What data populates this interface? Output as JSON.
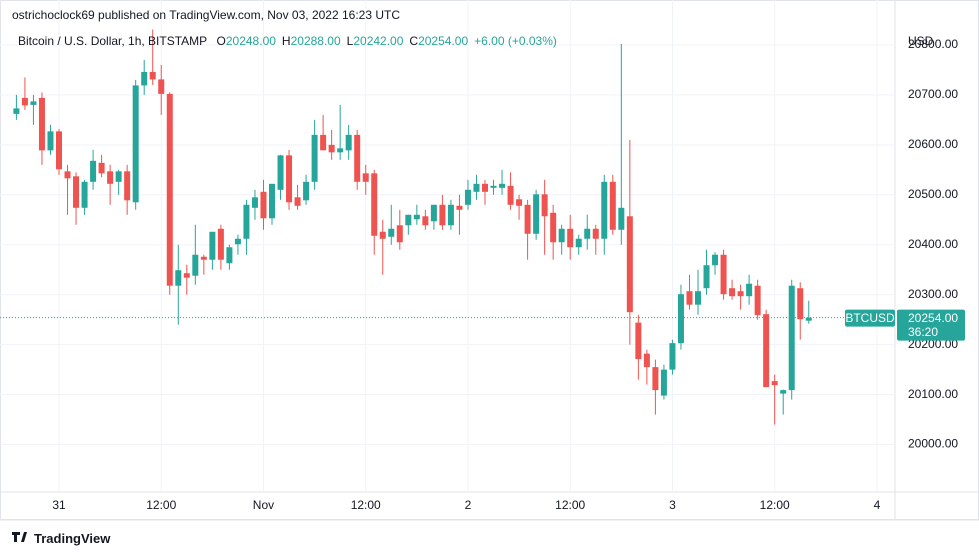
{
  "header": {
    "published": "ostrichoclock69 published on TradingView.com, Nov 03, 2022 16:23 UTC"
  },
  "footer": {
    "brand": "TradingView"
  },
  "chart_data": {
    "type": "candlestick",
    "symbol_line": "Bitcoin / U.S. Dollar, 1h, BITSTAMP",
    "legend": [
      {
        "key": "O",
        "text": "20248.00"
      },
      {
        "key": "H",
        "text": "20288.00"
      },
      {
        "key": "L",
        "text": "20242.00"
      },
      {
        "key": "C",
        "text": "20254.00"
      }
    ],
    "change": "+6.00 (+0.03%)",
    "currency": "USD",
    "price_tag": {
      "symbol": "BTCUSD",
      "price": "20254.00",
      "countdown": "36:20"
    },
    "up_color": "#26a69a",
    "down_color": "#ef5350",
    "grid": true,
    "categories": [
      null,
      null,
      null,
      null,
      null,
      "31",
      null,
      null,
      null,
      null,
      null,
      null,
      null,
      null,
      null,
      null,
      null,
      "12:00",
      null,
      null,
      null,
      null,
      null,
      null,
      null,
      null,
      null,
      null,
      null,
      "Nov",
      null,
      null,
      null,
      null,
      null,
      null,
      null,
      null,
      null,
      null,
      null,
      "12:00",
      null,
      null,
      null,
      null,
      null,
      null,
      null,
      null,
      null,
      null,
      null,
      "2",
      null,
      null,
      null,
      null,
      null,
      null,
      null,
      null,
      null,
      null,
      null,
      "12:00",
      null,
      null,
      null,
      null,
      null,
      null,
      null,
      null,
      null,
      null,
      null,
      "3",
      null,
      null,
      null,
      null,
      null,
      null,
      null,
      null,
      null,
      null,
      null,
      "12:00",
      null,
      null,
      null,
      null,
      null,
      null,
      null,
      null,
      null,
      null,
      null,
      "4",
      null,
      null
    ],
    "open": [
      20662,
      20694,
      20680,
      20694,
      20589,
      20627,
      20547,
      20537,
      20474,
      20526,
      20564,
      20547,
      20526,
      20547,
      20485,
      20719,
      20746,
      20731,
      20702,
      20318,
      20343,
      20338,
      20376,
      20370,
      20432,
      20363,
      20401,
      20412,
      20474,
      20506,
      20453,
      20510,
      20579,
      20495,
      20489,
      20526,
      20620,
      20600,
      20585,
      20589,
      20620,
      20543,
      20543,
      20426,
      20416,
      20439,
      20439,
      20451,
      20457,
      20447,
      20480,
      20439,
      20478,
      20480,
      20506,
      20522,
      20514,
      20514,
      20518,
      20491,
      20480,
      20422,
      20501,
      20464,
      20405,
      20432,
      20395,
      20412,
      20432,
      20412,
      20526,
      20430,
      20457,
      20244,
      20182,
      20155,
      20098,
      20150,
      20203,
      20307,
      20280,
      20313,
      20359,
      20380,
      20313,
      20307,
      20297,
      20318,
      20261,
      20127,
      20102,
      20109,
      20313,
      20248,
      null,
      null,
      null,
      null,
      null,
      null,
      null,
      null,
      null,
      null
    ],
    "high": [
      20700,
      20735,
      20700,
      20705,
      20640,
      20632,
      20560,
      20545,
      20530,
      20590,
      20580,
      20560,
      20550,
      20560,
      20730,
      20770,
      20831,
      20760,
      20705,
      20400,
      20360,
      20440,
      20380,
      20420,
      20440,
      20400,
      20420,
      20490,
      20510,
      20530,
      20520,
      20580,
      20590,
      20520,
      20540,
      20650,
      20660,
      20630,
      20680,
      20640,
      20630,
      20560,
      20550,
      20450,
      20480,
      20470,
      20460,
      20480,
      20470,
      20480,
      20500,
      20490,
      20500,
      20530,
      20540,
      20530,
      20530,
      20550,
      20545,
      20500,
      20490,
      20510,
      20530,
      20480,
      20440,
      20460,
      20420,
      20460,
      20440,
      20540,
      20540,
      20802,
      20610,
      20260,
      20190,
      20170,
      20160,
      20210,
      20320,
      20340,
      20350,
      20390,
      20385,
      20390,
      20330,
      20320,
      20340,
      20330,
      20270,
      20140,
      20110,
      20330,
      20325,
      20288,
      null,
      null,
      null,
      null,
      null,
      null,
      null,
      null,
      null,
      null
    ],
    "low": [
      20650,
      20670,
      20640,
      20560,
      20580,
      20540,
      20460,
      20440,
      20460,
      20510,
      20535,
      20480,
      20500,
      20460,
      20470,
      20700,
      20720,
      20660,
      20300,
      20240,
      20300,
      20320,
      20340,
      20350,
      20350,
      20350,
      20380,
      20380,
      20450,
      20430,
      20440,
      20490,
      20470,
      20470,
      20480,
      20510,
      20590,
      20570,
      20570,
      20570,
      20510,
      20500,
      20380,
      20340,
      20400,
      20390,
      20420,
      20440,
      20430,
      20430,
      20430,
      20430,
      20420,
      20470,
      20490,
      20480,
      20500,
      20500,
      20470,
      20450,
      20370,
      20410,
      20380,
      20370,
      20380,
      20370,
      20380,
      20390,
      20380,
      20380,
      20420,
      20400,
      20200,
      20130,
      20120,
      20060,
      20090,
      20140,
      20190,
      20270,
      20260,
      20300,
      20340,
      20290,
      20290,
      20270,
      20280,
      20250,
      20120,
      20040,
      20060,
      20090,
      20210,
      20242,
      null,
      null,
      null,
      null,
      null,
      null,
      null,
      null,
      null,
      null
    ],
    "close": [
      20673,
      20679,
      20687,
      20589,
      20627,
      20551,
      20533,
      20474,
      20526,
      20568,
      20543,
      20522,
      20547,
      20489,
      20719,
      20746,
      20731,
      20702,
      20318,
      20349,
      20334,
      20380,
      20370,
      20426,
      20370,
      20395,
      20412,
      20480,
      20495,
      20453,
      20522,
      20579,
      20485,
      20478,
      20526,
      20620,
      20589,
      20585,
      20593,
      20620,
      20526,
      20526,
      20418,
      20412,
      20432,
      20405,
      20460,
      20460,
      20439,
      20480,
      20439,
      20480,
      20470,
      20510,
      20522,
      20506,
      20518,
      20522,
      20480,
      20478,
      20422,
      20501,
      20457,
      20405,
      20432,
      20395,
      20412,
      20432,
      20412,
      20526,
      20430,
      20474,
      20265,
      20171,
      20155,
      20109,
      20150,
      20203,
      20301,
      20280,
      20307,
      20359,
      20380,
      20301,
      20297,
      20297,
      20322,
      20259,
      20115,
      20119,
      20109,
      20318,
      20251,
      20254,
      null,
      null,
      null,
      null,
      null,
      null,
      null,
      null,
      null,
      null
    ],
    "ylim": [
      19905,
      20890
    ],
    "yticks": [
      {
        "value": 20000,
        "label": "20000.00"
      },
      {
        "value": 20100,
        "label": "20100.00"
      },
      {
        "value": 20200,
        "label": "20200.00"
      },
      {
        "value": 20300,
        "label": "20300.00"
      },
      {
        "value": 20400,
        "label": "20400.00"
      },
      {
        "value": 20500,
        "label": "20500.00"
      },
      {
        "value": 20600,
        "label": "20600.00"
      },
      {
        "value": 20700,
        "label": "20700.00"
      },
      {
        "value": 20800,
        "label": "20800.00"
      }
    ]
  }
}
